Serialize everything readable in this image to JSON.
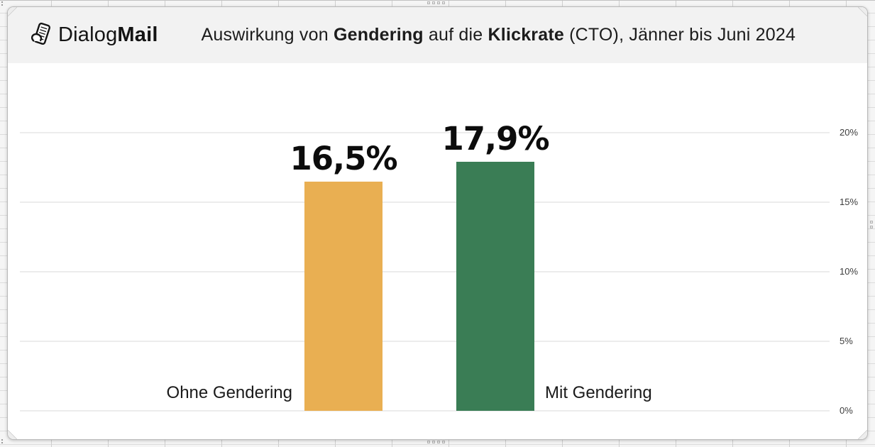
{
  "logo": {
    "icon": "newspaper-icon",
    "text_regular": "Dialog",
    "text_bold": "Mail"
  },
  "header": {
    "title_full": "Auswirkung von Gendering auf die Klickrate (CTO), Jänner bis Juni 2024",
    "title_parts": [
      {
        "text": "Auswirkung von ",
        "bold": false
      },
      {
        "text": "Gendering",
        "bold": true
      },
      {
        "text": " auf die ",
        "bold": false
      },
      {
        "text": "Klickrate",
        "bold": true
      },
      {
        "text": " (CTO), Jänner bis Juni 2024",
        "bold": false
      }
    ]
  },
  "chart_data": {
    "type": "bar",
    "title": "Auswirkung von Gendering auf die Klickrate (CTO), Jänner bis Juni 2024",
    "categories": [
      "Ohne Gendering",
      "Mit Gendering"
    ],
    "values": [
      16.5,
      17.9
    ],
    "value_labels": [
      "16,5%",
      "17,9%"
    ],
    "bar_colors": [
      "#e9af52",
      "#3a7d55"
    ],
    "category_label_side": [
      "left-of-bar",
      "right-of-bar"
    ],
    "ylabel": "",
    "xlabel": "",
    "ylim": [
      0,
      20
    ],
    "yticks": [
      {
        "value": 0,
        "label": "0%"
      },
      {
        "value": 5,
        "label": "5%"
      },
      {
        "value": 10,
        "label": "10%"
      },
      {
        "value": 15,
        "label": "15%"
      },
      {
        "value": 20,
        "label": "20%"
      }
    ],
    "grid": true,
    "legend": "none",
    "axis_side": "right"
  },
  "colors": {
    "bar_without_gendering": "#e9af52",
    "bar_with_gendering": "#3a7d55",
    "header_background": "#f2f2f2",
    "gridline": "#ececec",
    "card_background": "#ffffff",
    "text": "#1a1a1a"
  }
}
